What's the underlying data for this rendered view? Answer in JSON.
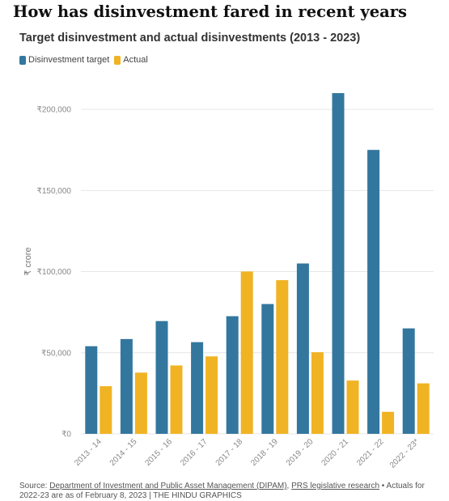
{
  "header": {
    "title": "How has disinvestment fared in recent years"
  },
  "colors": {
    "target": "#33779e",
    "actual": "#f0b323",
    "grid": "#e6e6e6",
    "axis_text": "#888888"
  },
  "chart_data": {
    "type": "bar",
    "title": "Target disinvestment and actual disinvestments (2013 - 2023)",
    "xlabel": "",
    "ylabel": "₹ crore",
    "categories": [
      "2013 - 14",
      "2014 - 15",
      "2015 - 16",
      "2016 - 17",
      "2017 - 18",
      "2018 - 19",
      "2019 - 20",
      "2020 - 21",
      "2021 - 22",
      "2022 - 23*"
    ],
    "series": [
      {
        "name": "Disinvestment target",
        "color": "#33779e",
        "values": [
          54000,
          58425,
          69500,
          56500,
          72500,
          80000,
          105000,
          210000,
          175000,
          65000
        ]
      },
      {
        "name": "Actual",
        "color": "#f0b323",
        "values": [
          29368,
          37737,
          42132,
          47743,
          100056,
          94727,
          50298,
          32835,
          13561,
          31106
        ]
      }
    ],
    "yticks": [
      0,
      50000,
      100000,
      150000,
      200000
    ],
    "ytick_labels": [
      "₹0",
      "₹50,000",
      "₹100,000",
      "₹150,000",
      "₹200,000"
    ],
    "ylim": [
      0,
      220000
    ],
    "grid": true,
    "legend_position": "top-left"
  },
  "source": {
    "prefix": "Source: ",
    "link1": "Department of Investment and Public Asset Management (DIPAM)",
    "sep": ", ",
    "link2": "PRS legislative research",
    "note": " • Actuals for 2022-23 are as of February 8, 2023 | THE HINDU GRAPHICS"
  }
}
